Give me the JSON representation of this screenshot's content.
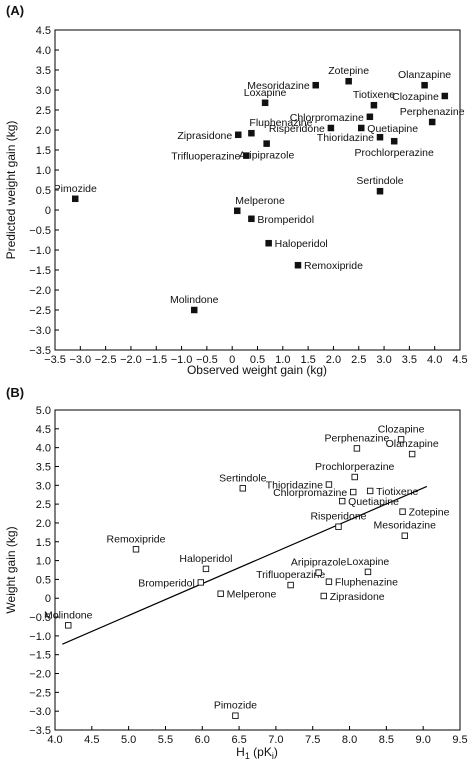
{
  "chart_data": [
    {
      "panel": "(A)",
      "type": "scatter",
      "xlabel": "Observed weight gain (kg)",
      "ylabel": "Predicted weight gain (kg)",
      "xlim": [
        -3.5,
        4.5
      ],
      "ylim": [
        -3.5,
        4.5
      ],
      "xticks": [
        -3.5,
        -3.0,
        -2.5,
        -2.0,
        -1.5,
        -1.0,
        -0.5,
        0,
        0.5,
        1.0,
        1.5,
        2.0,
        2.5,
        3.0,
        3.5,
        4.0,
        4.5
      ],
      "yticks": [
        -3.5,
        -3.0,
        -2.5,
        -2.0,
        -1.5,
        -1.0,
        -0.5,
        0,
        0.5,
        1.0,
        1.5,
        2.0,
        2.5,
        3.0,
        3.5,
        4.0,
        4.5
      ],
      "xtick_labels": [
        "−3.5",
        "−3.0",
        "−2.5",
        "−2.0",
        "−1.5",
        "−1.0",
        "−0.5",
        "0",
        "0.5",
        "1.0",
        "1.5",
        "2.0",
        "2.5",
        "3.0",
        "3.5",
        "4.0",
        "4.5"
      ],
      "ytick_labels": [
        "−3.5",
        "−3.0",
        "−2.5",
        "−2.0",
        "−1.5",
        "−1.0",
        "−0.5",
        "0",
        "0.5",
        "1.0",
        "1.5",
        "2.0",
        "2.5",
        "3.0",
        "3.5",
        "4.0",
        "4.5"
      ],
      "marker": "filled-square",
      "grid": false,
      "points": [
        {
          "label": "Pimozide",
          "x": -3.1,
          "y": 0.28,
          "pos": "above"
        },
        {
          "label": "Molindone",
          "x": -0.75,
          "y": -2.5,
          "pos": "above"
        },
        {
          "label": "Melperone",
          "x": 0.1,
          "y": -0.02,
          "pos": "above-right"
        },
        {
          "label": "Bromperidol",
          "x": 0.38,
          "y": -0.22,
          "pos": "right"
        },
        {
          "label": "Haloperidol",
          "x": 0.72,
          "y": -0.83,
          "pos": "right"
        },
        {
          "label": "Remoxipride",
          "x": 1.3,
          "y": -1.38,
          "pos": "right"
        },
        {
          "label": "Ziprasidone",
          "x": 0.12,
          "y": 1.88,
          "pos": "left"
        },
        {
          "label": "Fluphenazine",
          "x": 0.38,
          "y": 1.92,
          "pos": "above-right"
        },
        {
          "label": "Trifluoperazine",
          "x": 0.28,
          "y": 1.36,
          "pos": "left"
        },
        {
          "label": "Aripiprazole",
          "x": 0.68,
          "y": 1.66,
          "pos": "below"
        },
        {
          "label": "Loxapine",
          "x": 0.65,
          "y": 2.68,
          "pos": "above"
        },
        {
          "label": "Mesoridazine",
          "x": 1.65,
          "y": 3.12,
          "pos": "left"
        },
        {
          "label": "Zotepine",
          "x": 2.3,
          "y": 3.22,
          "pos": "above"
        },
        {
          "label": "Risperidone",
          "x": 1.95,
          "y": 2.05,
          "pos": "left"
        },
        {
          "label": "Chlorpromazine",
          "x": 2.72,
          "y": 2.33,
          "pos": "left"
        },
        {
          "label": "Tiotixene",
          "x": 2.8,
          "y": 2.62,
          "pos": "above"
        },
        {
          "label": "Quetiapine",
          "x": 2.55,
          "y": 2.05,
          "pos": "right"
        },
        {
          "label": "Thioridazine",
          "x": 2.92,
          "y": 1.82,
          "pos": "left"
        },
        {
          "label": "Prochlorperazine",
          "x": 3.2,
          "y": 1.72,
          "pos": "below"
        },
        {
          "label": "Olanzapine",
          "x": 3.8,
          "y": 3.12,
          "pos": "above"
        },
        {
          "label": "Clozapine",
          "x": 4.2,
          "y": 2.85,
          "pos": "left"
        },
        {
          "label": "Perphenazine",
          "x": 3.95,
          "y": 2.2,
          "pos": "above"
        },
        {
          "label": "Sertindole",
          "x": 2.92,
          "y": 0.47,
          "pos": "above"
        }
      ]
    },
    {
      "panel": "(B)",
      "type": "scatter",
      "xlabel": "H",
      "xlabel_sub": "1",
      "xlabel_unit_open": " (pK",
      "xlabel_unit_sub": "i",
      "xlabel_unit_close": ")",
      "ylabel": "Weight gain (kg)",
      "xlim": [
        4.0,
        9.5
      ],
      "ylim": [
        -3.5,
        5.0
      ],
      "xticks": [
        4.0,
        4.5,
        5.0,
        5.5,
        6.0,
        6.5,
        7.0,
        7.5,
        8.0,
        8.5,
        9.0,
        9.5
      ],
      "yticks": [
        -3.5,
        -3.0,
        -2.5,
        -2.0,
        -1.5,
        -1.0,
        -0.5,
        0,
        0.5,
        1.0,
        1.5,
        2.0,
        2.5,
        3.0,
        3.5,
        4.0,
        4.5,
        5.0
      ],
      "xtick_labels": [
        "4.0",
        "4.5",
        "5.0",
        "5.5",
        "6.0",
        "6.5",
        "7.0",
        "7.5",
        "8.0",
        "8.5",
        "9.0",
        "9.5"
      ],
      "ytick_labels": [
        "−3.5",
        "−3.0",
        "−2.5",
        "−2.0",
        "−1.5",
        "−1.0",
        "−0.5",
        "0",
        "0.5",
        "1.0",
        "1.5",
        "2.0",
        "2.5",
        "3.0",
        "3.5",
        "4.0",
        "4.5",
        "5.0"
      ],
      "marker": "open-square",
      "grid": false,
      "regression_line": {
        "x": [
          4.1,
          9.05
        ],
        "y": [
          -1.22,
          2.97
        ]
      },
      "points": [
        {
          "label": "Molindone",
          "x": 4.18,
          "y": -0.72,
          "pos": "above"
        },
        {
          "label": "Remoxipride",
          "x": 5.1,
          "y": 1.3,
          "pos": "above"
        },
        {
          "label": "Haloperidol",
          "x": 6.05,
          "y": 0.78,
          "pos": "above"
        },
        {
          "label": "Bromperidol",
          "x": 5.98,
          "y": 0.42,
          "pos": "left"
        },
        {
          "label": "Melperone",
          "x": 6.25,
          "y": 0.12,
          "pos": "right"
        },
        {
          "label": "Trifluoperazine",
          "x": 7.2,
          "y": 0.35,
          "pos": "above"
        },
        {
          "label": "Sertindole",
          "x": 6.55,
          "y": 2.92,
          "pos": "above"
        },
        {
          "label": "Pimozide",
          "x": 6.45,
          "y": -3.12,
          "pos": "above"
        },
        {
          "label": "Aripiprazole",
          "x": 7.58,
          "y": 0.68,
          "pos": "above"
        },
        {
          "label": "Fluphenazine",
          "x": 7.72,
          "y": 0.44,
          "pos": "right"
        },
        {
          "label": "Ziprasidone",
          "x": 7.65,
          "y": 0.06,
          "pos": "right"
        },
        {
          "label": "Loxapine",
          "x": 8.25,
          "y": 0.7,
          "pos": "above"
        },
        {
          "label": "Risperidone",
          "x": 7.85,
          "y": 1.9,
          "pos": "above"
        },
        {
          "label": "Mesoridazine",
          "x": 8.75,
          "y": 1.66,
          "pos": "above"
        },
        {
          "label": "Quetiapine",
          "x": 7.9,
          "y": 2.58,
          "pos": "right"
        },
        {
          "label": "Chlorpromazine",
          "x": 8.05,
          "y": 2.82,
          "pos": "left"
        },
        {
          "label": "Thioridazine",
          "x": 7.72,
          "y": 3.02,
          "pos": "left"
        },
        {
          "label": "Prochlorperazine",
          "x": 8.07,
          "y": 3.22,
          "pos": "above"
        },
        {
          "label": "Tiotixene",
          "x": 8.28,
          "y": 2.85,
          "pos": "right"
        },
        {
          "label": "Zotepine",
          "x": 8.72,
          "y": 2.3,
          "pos": "right"
        },
        {
          "label": "Perphenazine",
          "x": 8.1,
          "y": 3.98,
          "pos": "above"
        },
        {
          "label": "Clozapine",
          "x": 8.7,
          "y": 4.22,
          "pos": "above"
        },
        {
          "label": "Olanzapine",
          "x": 8.85,
          "y": 3.83,
          "pos": "above"
        }
      ]
    }
  ]
}
